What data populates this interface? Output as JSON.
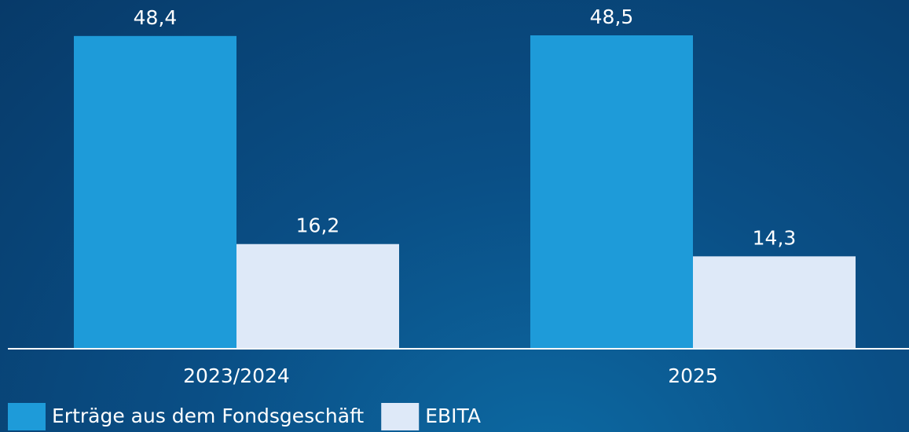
{
  "chart_data": {
    "type": "bar",
    "categories": [
      "2023/2024",
      "2025"
    ],
    "series": [
      {
        "name": "Erträge aus dem Fondsgeschäft",
        "color": "#1e9bd9",
        "values": [
          48.4,
          48.5
        ],
        "value_labels": [
          "48,4",
          "48,5"
        ]
      },
      {
        "name": "EBITA",
        "color": "#dee9f8",
        "values": [
          16.2,
          14.3
        ],
        "value_labels": [
          "16,2",
          "14,3"
        ]
      }
    ],
    "legend": "bottom-left"
  }
}
